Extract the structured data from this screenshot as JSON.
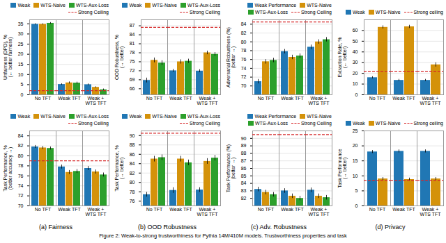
{
  "caption": "Figure 2: Weak-to-strong trustworthiness for Pythia 14M/410M models.  Trustworthiness properties and task",
  "chart_data": [
    {
      "type": "bar",
      "ylabel": "Unfairness (DPD), %\n(← better fairness)",
      "categories": [
        "No TFT",
        "Weak TFT",
        "Weak +\nWTS TFT"
      ],
      "ylim": [
        0,
        37
      ],
      "yticks": [
        0,
        5,
        10,
        15,
        20,
        25,
        30,
        35
      ],
      "grid": true,
      "legend": "upper right",
      "series": [
        {
          "name": "Weak",
          "color": "#2077b4",
          "values": [
            34.8,
            5.1,
            5.0
          ],
          "errors": [
            0.3,
            0.4,
            0.4
          ]
        },
        {
          "name": "WTS-Naive",
          "color": "#d4920a",
          "values": [
            34.8,
            5.9,
            3.7
          ],
          "errors": [
            0.3,
            0.5,
            0.3
          ]
        },
        {
          "name": "WTS-Aux-Loss",
          "color": "#2ca02c",
          "values": [
            35.3,
            5.8,
            2.5
          ],
          "errors": [
            0.4,
            0.5,
            0.4
          ]
        }
      ],
      "reference_line": {
        "name": "Strong Ceiling",
        "value": 2.0,
        "color": "#d62728",
        "line_style": "dashed"
      }
    },
    {
      "type": "bar",
      "ylabel": "OOD Robustness, %\n(→ better)",
      "categories": [
        "No TFT",
        "Weak TFT",
        "Weak +\nWTS TFT"
      ],
      "ylim": [
        64,
        89
      ],
      "yticks": [
        66,
        69,
        72,
        75,
        78,
        81,
        84,
        87
      ],
      "grid": true,
      "legend": "upper right",
      "series": [
        {
          "name": "Weak",
          "color": "#2077b4",
          "values": [
            68.8,
            72.0,
            71.9
          ],
          "errors": [
            0.8,
            0.5,
            0.5
          ]
        },
        {
          "name": "WTS-Naive",
          "color": "#d4920a",
          "values": [
            75.5,
            75.0,
            78.0
          ],
          "errors": [
            0.8,
            0.7,
            0.6
          ]
        },
        {
          "name": "WTS-Aux-Loss",
          "color": "#2ca02c",
          "values": [
            74.6,
            75.2,
            77.5
          ],
          "errors": [
            0.8,
            0.7,
            0.6
          ]
        }
      ],
      "reference_line": {
        "name": "Strong Ceiling",
        "value": 86.5,
        "color": "#d62728",
        "line_style": "dashed"
      }
    },
    {
      "type": "bar",
      "ylabel": "Adversarial Robustness (%)\n(better →)",
      "categories": [
        "No TFT",
        "Weak TFT",
        "Weak +\nWTS TFT"
      ],
      "ylim": [
        68,
        85
      ],
      "yticks": [
        70,
        72,
        74,
        76,
        78,
        80,
        82,
        84
      ],
      "grid": true,
      "legend": "upper right",
      "series": [
        {
          "name": "Weak Performance",
          "color": "#2077b4",
          "values": [
            71.0,
            77.8,
            78.8
          ],
          "errors": [
            0.5,
            0.5,
            0.5
          ]
        },
        {
          "name": "WTS-Naive",
          "color": "#d4920a",
          "values": [
            75.5,
            76.5,
            80.0
          ],
          "errors": [
            0.5,
            0.5,
            0.5
          ]
        },
        {
          "name": "WTS-Aux-Loss",
          "color": "#2ca02c",
          "values": [
            75.8,
            76.8,
            80.5
          ],
          "errors": [
            0.5,
            0.5,
            0.5
          ]
        }
      ],
      "reference_line": {
        "name": "Strong Ceiling",
        "value": 84.5,
        "color": "#d62728",
        "line_style": "dashed"
      }
    },
    {
      "type": "bar",
      "ylabel": "Extraction Rate, %\n(← better)",
      "categories": [
        "No TFT",
        "Weak TFT",
        "Weak +\nWTS TFT"
      ],
      "ylim": [
        0,
        70
      ],
      "yticks": [
        0,
        10,
        20,
        30,
        40,
        50,
        60
      ],
      "grid": true,
      "legend": "upper right",
      "series": [
        {
          "name": "Weak",
          "color": "#2077b4",
          "values": [
            16.0,
            13.5,
            13.5
          ],
          "errors": [
            1.0,
            1.0,
            1.0
          ]
        },
        {
          "name": "WTS-Naive",
          "color": "#d4920a",
          "values": [
            63.0,
            63.5,
            28.0
          ],
          "errors": [
            1.5,
            1.5,
            2.0
          ]
        }
      ],
      "reference_line": {
        "name": "Strong ceiling",
        "value": 22.0,
        "color": "#d62728",
        "line_style": "dashed"
      }
    },
    {
      "type": "bar",
      "title": "(a) Fairness",
      "ylabel": "Task Performance, %\n(better accuracy →)",
      "categories": [
        "No TFT",
        "Weak TFT",
        "Weak +\nWTS TFT"
      ],
      "ylim": [
        70,
        85
      ],
      "yticks": [
        70,
        72,
        74,
        76,
        78,
        80,
        82,
        84
      ],
      "grid": true,
      "legend": "upper right",
      "series": [
        {
          "name": "Weak",
          "color": "#2077b4",
          "values": [
            81.8,
            77.8,
            77.5
          ],
          "errors": [
            0.3,
            0.4,
            0.4
          ]
        },
        {
          "name": "WTS-Naive",
          "color": "#d4920a",
          "values": [
            81.6,
            76.7,
            76.8
          ],
          "errors": [
            0.3,
            0.4,
            0.4
          ]
        },
        {
          "name": "WTS-Aux-Loss",
          "color": "#2ca02c",
          "values": [
            81.5,
            76.9,
            76.2
          ],
          "errors": [
            0.3,
            0.4,
            0.4
          ]
        }
      ],
      "reference_line": {
        "name": "Strong Ceiling",
        "value": 79.0,
        "color": "#d62728",
        "line_style": "dashed"
      }
    },
    {
      "type": "bar",
      "title": "(b) OOD Robustness",
      "ylabel": "Task Performance, %\n(→ better)",
      "categories": [
        "No TFT",
        "Weak TFT",
        "Weak +\nWTS TFT"
      ],
      "ylim": [
        75,
        91
      ],
      "yticks": [
        76,
        78,
        80,
        82,
        84,
        86,
        88,
        90
      ],
      "grid": true,
      "legend": "upper right",
      "series": [
        {
          "name": "Weak",
          "color": "#2077b4",
          "values": [
            77.4,
            78.3,
            78.4
          ],
          "errors": [
            0.5,
            0.6,
            0.5
          ]
        },
        {
          "name": "WTS-Naive",
          "color": "#d4920a",
          "values": [
            85.0,
            85.0,
            84.5
          ],
          "errors": [
            0.6,
            0.6,
            0.6
          ]
        },
        {
          "name": "WTS-Aux-Loss",
          "color": "#2ca02c",
          "values": [
            85.3,
            84.2,
            85.2
          ],
          "errors": [
            0.6,
            0.6,
            0.6
          ]
        }
      ],
      "reference_line": {
        "name": "Strong Ceiling",
        "value": 90.5,
        "color": "#d62728",
        "line_style": "dashed"
      }
    },
    {
      "type": "bar",
      "title": "(c) Adv. Robustness",
      "ylabel": "Task Performance (%)\n(better →)",
      "categories": [
        "No TFT",
        "Weak TFT",
        "Weak +\nWTS TFT"
      ],
      "ylim": [
        81,
        91
      ],
      "yticks": [
        82,
        83,
        84,
        85,
        86,
        87,
        88,
        89,
        90
      ],
      "grid": true,
      "legend": "upper right",
      "series": [
        {
          "name": "Weak Performance",
          "color": "#2077b4",
          "values": [
            83.2,
            83.0,
            83.1
          ],
          "errors": [
            0.3,
            0.3,
            0.3
          ]
        },
        {
          "name": "WTS-Naive",
          "color": "#d4920a",
          "values": [
            82.8,
            82.3,
            82.3
          ],
          "errors": [
            0.3,
            0.3,
            0.3
          ]
        },
        {
          "name": "WTS-Aux-Loss",
          "color": "#2ca02c",
          "values": [
            82.5,
            82.0,
            82.1
          ],
          "errors": [
            0.3,
            0.3,
            0.3
          ]
        }
      ],
      "reference_line": {
        "name": "Strong Ceiling",
        "value": 90.5,
        "color": "#d62728",
        "line_style": "dashed"
      }
    },
    {
      "type": "bar",
      "title": "(d) Privacy",
      "ylabel": "Task Performance\n(→ better)",
      "categories": [
        "No TFT",
        "Weak TFT",
        "Weak +\nWTS TFT"
      ],
      "ylim": [
        0,
        25
      ],
      "yticks": [
        0,
        5,
        10,
        15,
        20,
        25
      ],
      "grid": true,
      "legend": "upper right",
      "series": [
        {
          "name": "Weak",
          "color": "#2077b4",
          "values": [
            18.0,
            18.2,
            18.2
          ],
          "errors": [
            0.5,
            0.5,
            0.5
          ]
        },
        {
          "name": "WTS-Naive",
          "color": "#d4920a",
          "values": [
            9.0,
            8.8,
            9.0
          ],
          "errors": [
            0.5,
            0.5,
            0.5
          ]
        }
      ],
      "reference_line": {
        "name": "Strong ceiling",
        "value": 8.5,
        "color": "#d62728",
        "line_style": "dashed"
      }
    }
  ]
}
